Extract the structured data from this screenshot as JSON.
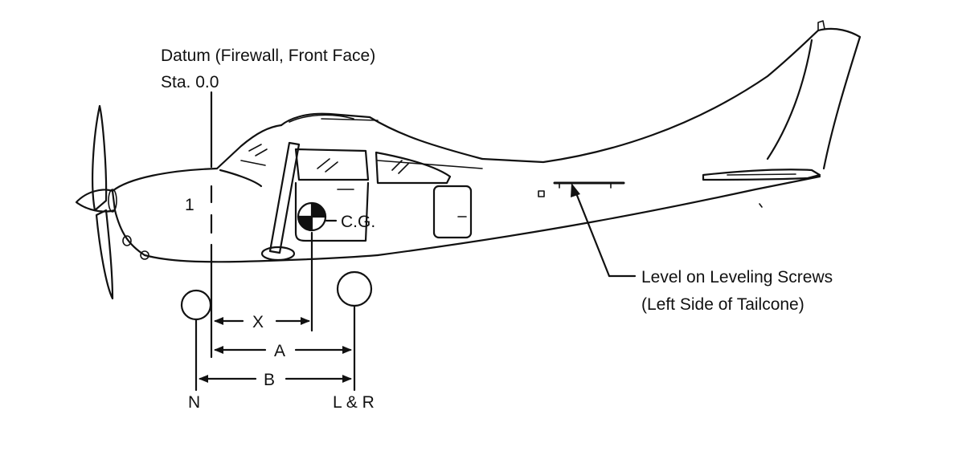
{
  "labels": {
    "datum_line1": "Datum (Firewall, Front Face)",
    "datum_line2": "Sta. 0.0",
    "cg": "C.G.",
    "level_line1": "Level on Leveling Screws",
    "level_line2": "(Left Side of Tailcone)",
    "dim_x": "X",
    "dim_a": "A",
    "dim_b": "B",
    "wheel_nose": "N",
    "wheel_main": "L & R",
    "mark_1": "1"
  },
  "colors": {
    "ink": "#111111",
    "background": "#ffffff"
  }
}
